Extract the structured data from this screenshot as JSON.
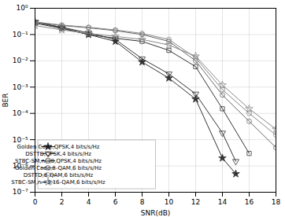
{
  "chart_data": {
    "type": "line",
    "xlabel": "SNR(dB)",
    "ylabel": "BER",
    "log": "y",
    "grid": true,
    "legend": "lower left",
    "xlim": [
      0,
      18
    ],
    "xticks": [
      0,
      2,
      4,
      6,
      8,
      10,
      12,
      14,
      16,
      18
    ],
    "ylim": [
      1e-07,
      1
    ],
    "yticks": [
      {
        "value": 1e-07,
        "label": "10⁻⁷"
      },
      {
        "value": 1e-06,
        "label": "10⁻⁶"
      },
      {
        "value": 1e-05,
        "label": "10⁻⁵"
      },
      {
        "value": 0.0001,
        "label": "10⁻⁴"
      },
      {
        "value": 0.001,
        "label": "10⁻³"
      },
      {
        "value": 0.01,
        "label": "10⁻²"
      },
      {
        "value": 0.1,
        "label": "10⁻¹"
      },
      {
        "value": 1,
        "label": "10⁰"
      }
    ],
    "series": [
      {
        "name": "Golden Code,QPSK,4 bits/s/Hz",
        "color": "#333333",
        "marker": "star",
        "x": [
          0,
          2,
          4,
          6,
          8,
          10,
          12,
          14,
          15
        ],
        "values": [
          0.3,
          0.18,
          0.1,
          0.055,
          0.009,
          0.0022,
          0.00035,
          2e-06,
          5e-07
        ]
      },
      {
        "name": "DSTTD,QPSK,4 bits/s/Hz",
        "color": "#333333",
        "marker": "triangle-down-open",
        "x": [
          0,
          2,
          4,
          6,
          8,
          10,
          12,
          14,
          15
        ],
        "values": [
          0.3,
          0.19,
          0.115,
          0.065,
          0.012,
          0.0032,
          0.00055,
          1.8e-05,
          1.5e-06
        ]
      },
      {
        "name": "STBC-SM,nᵣ=8,QPSK,4 bits/s/Hz",
        "color": "#333333",
        "marker": "square-open",
        "x": [
          0,
          2,
          4,
          6,
          8,
          10,
          12,
          14,
          16
        ],
        "values": [
          0.27,
          0.17,
          0.1,
          0.072,
          0.055,
          0.025,
          0.006,
          0.00015,
          3e-06
        ]
      },
      {
        "name": "Golden Code,8-QAM,6 bits/s/Hz",
        "color": "#666666",
        "marker": "circle-open",
        "x": [
          0,
          2,
          4,
          6,
          8,
          10,
          12,
          14,
          16,
          18
        ],
        "values": [
          0.3,
          0.22,
          0.18,
          0.14,
          0.1,
          0.055,
          0.01,
          0.0005,
          5e-05,
          5e-06
        ]
      },
      {
        "name": "DSTTD,8-QAM,6 bits/s/Hz",
        "color": "#888888",
        "marker": "circle-open",
        "x": [
          0,
          2,
          4,
          6,
          8,
          10,
          12,
          14,
          16,
          18
        ],
        "values": [
          0.3,
          0.23,
          0.19,
          0.15,
          0.11,
          0.065,
          0.013,
          0.0008,
          0.0001,
          1.5e-05
        ]
      },
      {
        "name": "STBC-SM,nᵣ=8,16-QAM,6 bits/s/Hz",
        "color": "#888888",
        "marker": "star-open",
        "x": [
          0,
          2,
          4,
          6,
          8,
          10,
          12,
          14,
          16,
          18
        ],
        "values": [
          0.22,
          0.15,
          0.11,
          0.085,
          0.065,
          0.04,
          0.015,
          0.0012,
          0.00015,
          2.5e-05
        ]
      }
    ]
  }
}
